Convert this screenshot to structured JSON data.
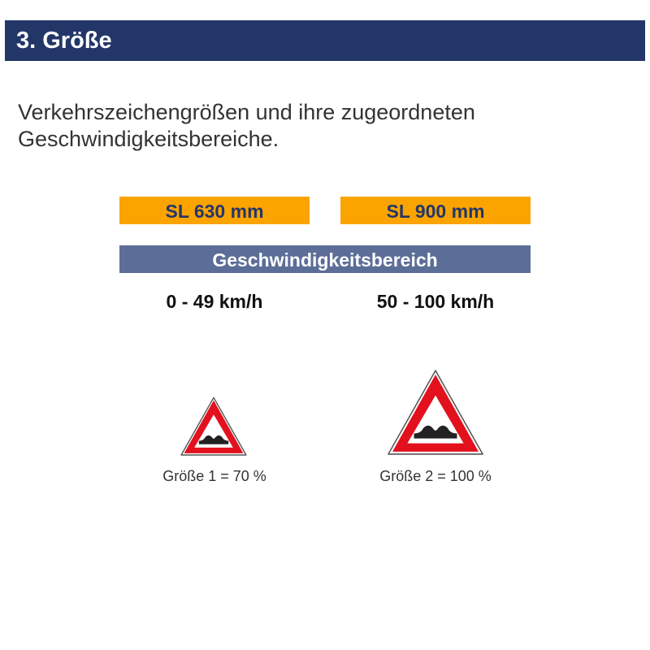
{
  "header": {
    "title": "3. Größe"
  },
  "intro": {
    "text": "Verkehrszeichengrößen und ihre zugeordneten Geschwindigkeitsbereiche."
  },
  "sizes": [
    {
      "label": "SL 630 mm",
      "range": "0 - 49 km/h",
      "caption": "Größe 1 = 70 %",
      "scale_percent": 70
    },
    {
      "label": "SL 900 mm",
      "range": "50 - 100 km/h",
      "caption": "Größe 2 = 100 %",
      "scale_percent": 100
    }
  ],
  "speed_header": "Geschwindigkeitsbereich",
  "colors": {
    "header": "#233668",
    "size_box": "#FBA400",
    "speed_bar": "#5C6E97",
    "sign_red": "#E3101E"
  },
  "icons": [
    "uneven-road-warning-sign-icon"
  ]
}
